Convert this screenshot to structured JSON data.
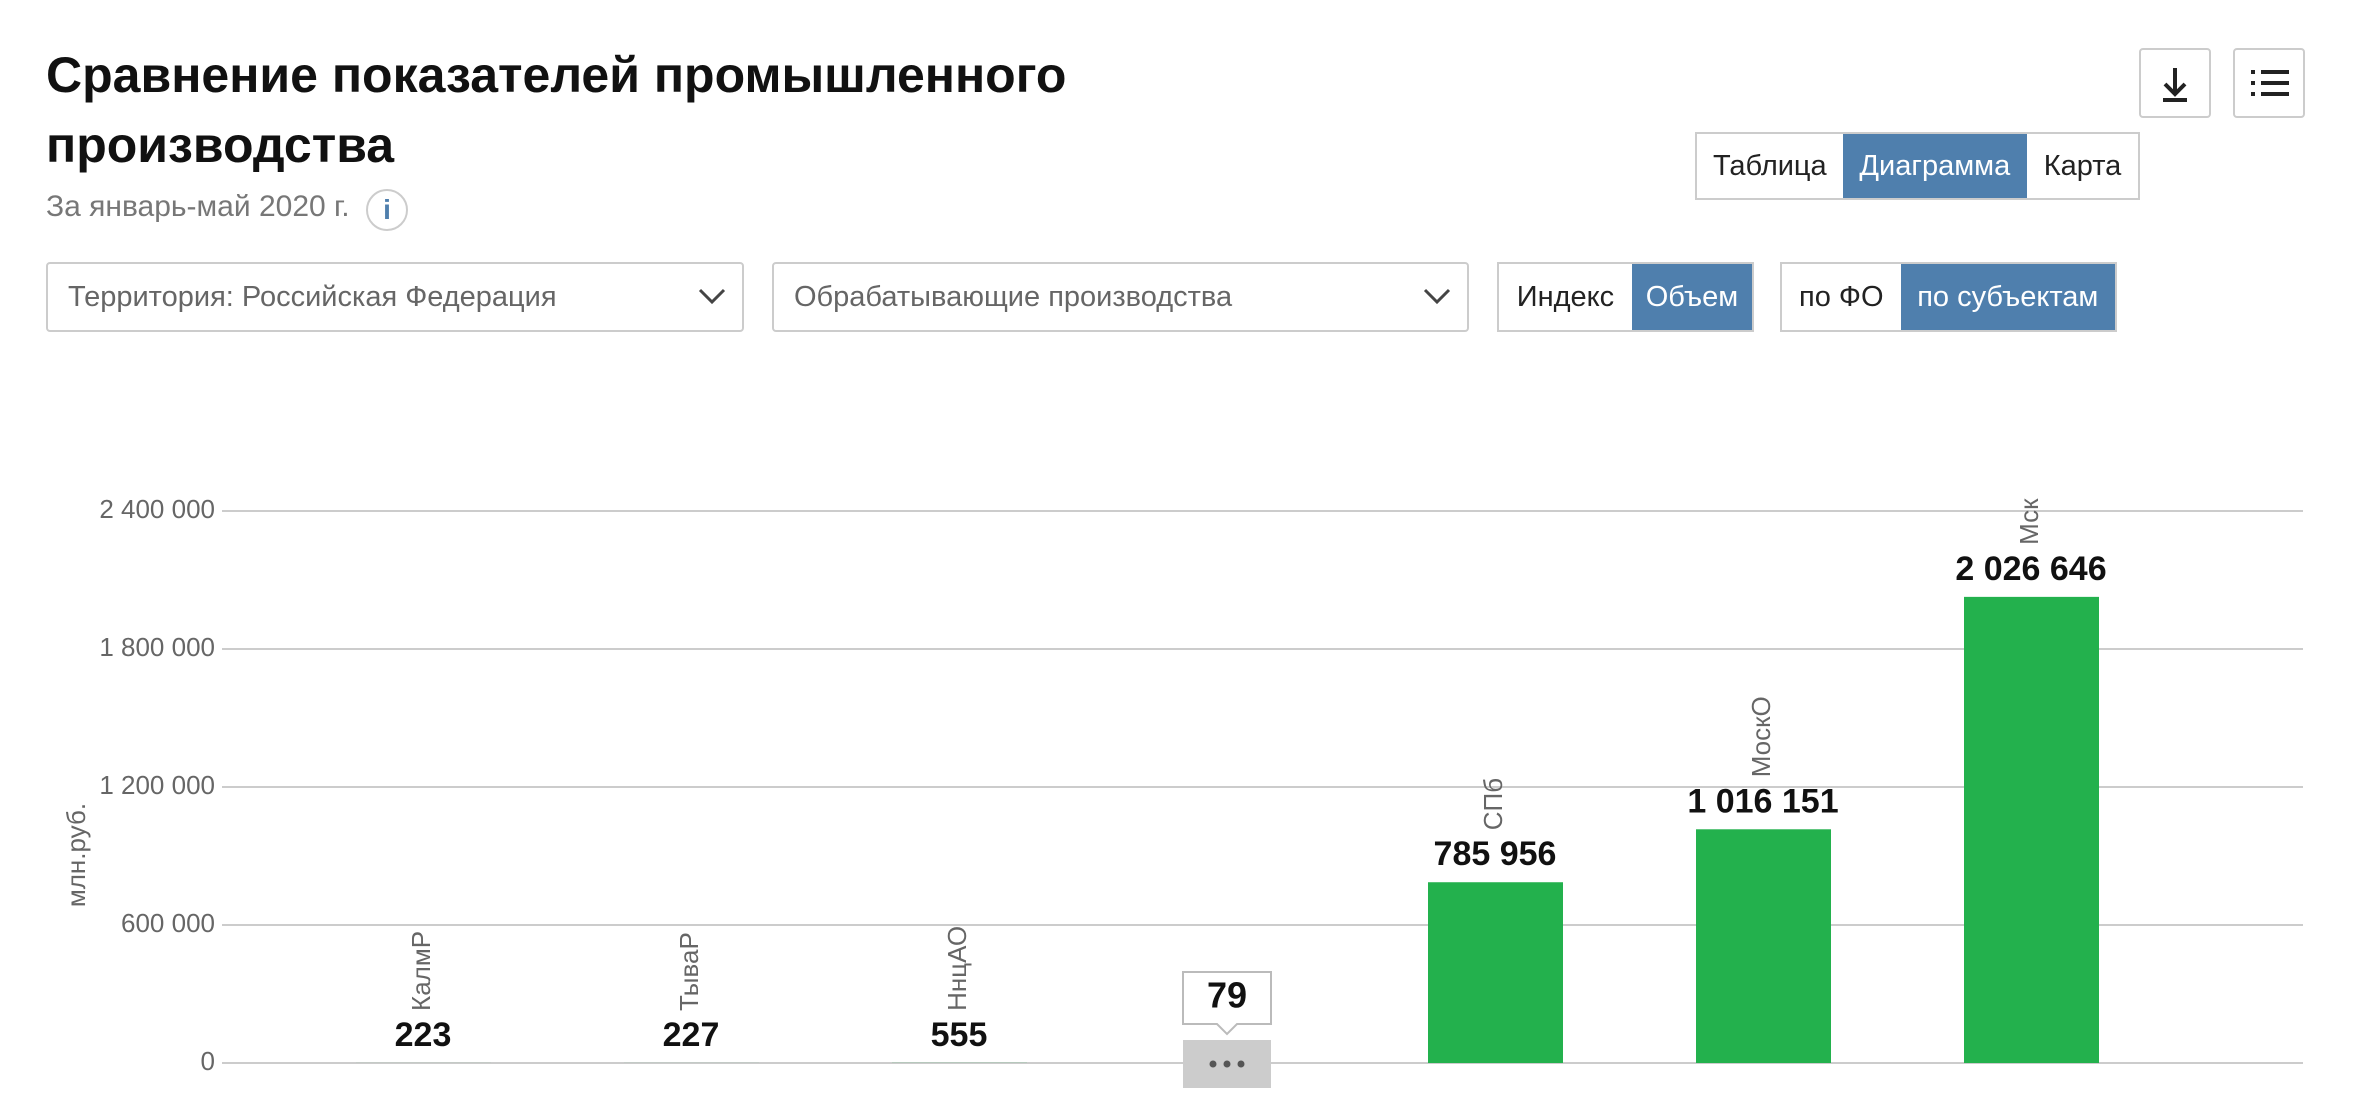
{
  "header": {
    "title": "Сравнение показателей промышленного производства",
    "subtitle": "За январь-май 2020 г.",
    "info": "i"
  },
  "view_tabs": [
    {
      "label": "Таблица",
      "active": false
    },
    {
      "label": "Диаграмма",
      "active": true
    },
    {
      "label": "Карта",
      "active": false
    }
  ],
  "filters": {
    "territory": "Территория: Российская  Федерация",
    "industry": "Обрабатывающие производства"
  },
  "measure_toggle": [
    {
      "label": "Индекс",
      "active": false
    },
    {
      "label": "Объем",
      "active": true
    }
  ],
  "level_toggle": [
    {
      "label": "по ФО",
      "active": false
    },
    {
      "label": "по субъектам",
      "active": true
    }
  ],
  "chart_data": {
    "type": "bar",
    "y_label": "млн.руб.",
    "color": "#23b14d",
    "grid": true,
    "categories": [
      "КалмР",
      "ТываР",
      "НнцАО",
      null,
      "СПб",
      "МоскО",
      "Мск"
    ],
    "values": [
      223,
      227,
      555,
      null,
      785956,
      1016151,
      2026646
    ],
    "value_labels": [
      "223",
      "227",
      "555",
      null,
      "785 956",
      "1 016 151",
      "2 026 646"
    ],
    "hidden_count": 79,
    "ylim": [
      0,
      2400000
    ],
    "yticks": [
      0,
      {
        "value": 600000,
        "label": "600 000"
      },
      {
        "value": 1200000,
        "label": "1 200 000"
      },
      {
        "value": 1800000,
        "label": "1 800 000"
      },
      {
        "value": 2400000,
        "label": "2 400 000"
      }
    ]
  }
}
